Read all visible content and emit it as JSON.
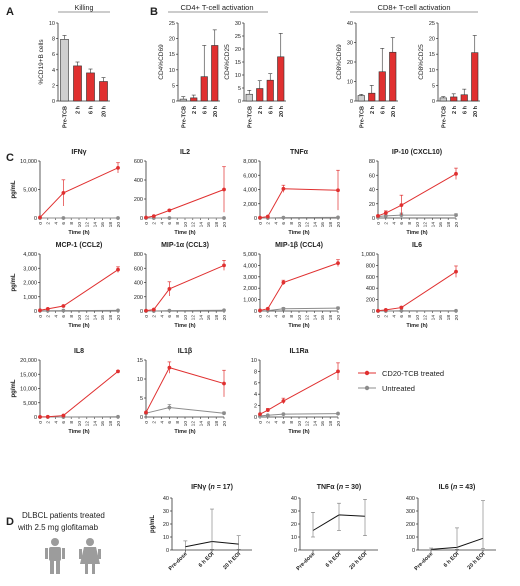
{
  "panel_letters": [
    "A",
    "B",
    "C",
    "D"
  ],
  "legend": {
    "treated_label": "CD20-TCB treated",
    "untreated_label": "Untreated",
    "treated_color": "#e03030",
    "untreated_color": "#8c8c8c"
  },
  "patients_note": [
    "DLBCL patients treated",
    "with 2.5 mg glofitamab"
  ],
  "chart_data": [
    {
      "id": "A1",
      "type": "bar",
      "header": "Killing",
      "ylabel": "%CD19+B cells",
      "ylim": [
        0,
        10
      ],
      "yticks": [
        0,
        2,
        4,
        6,
        8,
        10
      ],
      "categories": [
        "Pre-TCB",
        "2 h",
        "6 h",
        "20 h"
      ],
      "values": [
        7.9,
        4.5,
        3.6,
        2.5
      ],
      "errors": [
        0.5,
        0.5,
        0.5,
        0.5
      ],
      "colors": [
        "#cfcfcf",
        "#e03030",
        "#e03030",
        "#e03030"
      ]
    },
    {
      "id": "B1",
      "type": "bar",
      "group_header": "CD4+ T-cell activation",
      "ylabel": "CD4%CD69",
      "ylim": [
        0,
        25
      ],
      "yticks": [
        0,
        5,
        10,
        15,
        20,
        25
      ],
      "categories": [
        "Pre-TCB",
        "2 h",
        "6 h",
        "20 h"
      ],
      "values": [
        0.6,
        1.0,
        7.8,
        17.8
      ],
      "errors": [
        0.8,
        0.9,
        10.0,
        5.0
      ],
      "colors": [
        "#cfcfcf",
        "#e03030",
        "#e03030",
        "#e03030"
      ]
    },
    {
      "id": "B2",
      "type": "bar",
      "ylabel": "CD4%CD25",
      "ylim": [
        0,
        30
      ],
      "yticks": [
        0,
        5,
        10,
        15,
        20,
        25,
        30
      ],
      "categories": [
        "Pre-TCB",
        "2 h",
        "6 h",
        "20 h"
      ],
      "values": [
        2.6,
        4.8,
        8.0,
        17.0
      ],
      "errors": [
        1.5,
        3.0,
        2.5,
        9.0
      ],
      "colors": [
        "#cfcfcf",
        "#e03030",
        "#e03030",
        "#e03030"
      ]
    },
    {
      "id": "B3",
      "type": "bar",
      "group_header": "CD8+ T-cell activation",
      "ylabel": "CD8%CD69",
      "ylim": [
        0,
        40
      ],
      "yticks": [
        0,
        10,
        20,
        30,
        40
      ],
      "categories": [
        "Pre-TCB",
        "2 h",
        "6 h",
        "20 h"
      ],
      "values": [
        2.8,
        4.0,
        15.0,
        25.0
      ],
      "errors": [
        0.6,
        4.0,
        12.0,
        7.5
      ],
      "colors": [
        "#cfcfcf",
        "#e03030",
        "#e03030",
        "#e03030"
      ]
    },
    {
      "id": "B4",
      "type": "bar",
      "ylabel": "CD8%CD25",
      "ylim": [
        0,
        25
      ],
      "yticks": [
        0,
        5,
        10,
        15,
        20,
        25
      ],
      "categories": [
        "Pre-TCB",
        "2 h",
        "6 h",
        "20 h"
      ],
      "values": [
        1.0,
        1.3,
        2.0,
        15.5
      ],
      "errors": [
        0.4,
        1.0,
        1.8,
        5.5
      ],
      "colors": [
        "#cfcfcf",
        "#e03030",
        "#e03030",
        "#e03030"
      ]
    },
    {
      "id": "C1",
      "type": "line",
      "title": "IFNγ",
      "ylabel": "pg/mL",
      "xlabel": "Time (h)",
      "ylim": [
        0,
        10000
      ],
      "yticks": [
        0,
        5000,
        10000
      ],
      "ytick_labels": [
        "0",
        "5,000",
        "10,000"
      ],
      "series": [
        {
          "x": [
            0,
            6,
            20
          ],
          "y": [
            100,
            4400,
            8800
          ],
          "err": [
            0,
            2300,
            900
          ]
        },
        {
          "x": [
            0,
            6,
            20
          ],
          "y": [
            0,
            0,
            0
          ],
          "err": [
            0,
            0,
            0
          ]
        }
      ]
    },
    {
      "id": "C2",
      "type": "line",
      "title": "IL2",
      "ylabel": "",
      "xlabel": "Time (h)",
      "ylim": [
        0,
        600
      ],
      "yticks": [
        0,
        200,
        400,
        600
      ],
      "ytick_labels": [
        "0",
        "200",
        "400",
        "600"
      ],
      "series": [
        {
          "x": [
            0,
            2,
            6,
            20
          ],
          "y": [
            5,
            20,
            80,
            300
          ],
          "err": [
            0,
            5,
            10,
            240
          ]
        },
        {
          "x": [
            0,
            2,
            6,
            20
          ],
          "y": [
            0,
            0,
            0,
            0
          ],
          "err": [
            0,
            0,
            0,
            0
          ]
        }
      ]
    },
    {
      "id": "C3",
      "type": "line",
      "title": "TNFα",
      "ylabel": "",
      "xlabel": "Time (h)",
      "ylim": [
        0,
        8000
      ],
      "yticks": [
        0,
        2000,
        4000,
        6000,
        8000
      ],
      "ytick_labels": [
        "0",
        "2,000",
        "4,000",
        "6,000",
        "8,000"
      ],
      "series": [
        {
          "x": [
            0,
            2,
            6,
            20
          ],
          "y": [
            50,
            200,
            4100,
            3900
          ],
          "err": [
            0,
            0,
            500,
            2800
          ]
        },
        {
          "x": [
            0,
            2,
            6,
            20
          ],
          "y": [
            0,
            0,
            50,
            80
          ],
          "err": [
            0,
            0,
            0,
            0
          ]
        }
      ]
    },
    {
      "id": "C4",
      "type": "line",
      "title": "IP-10 (CXCL10)",
      "ylabel": "",
      "xlabel": "Time (h)",
      "ylim": [
        0,
        80
      ],
      "yticks": [
        0,
        20,
        40,
        60,
        80
      ],
      "ytick_labels": [
        "0",
        "20",
        "40",
        "60",
        "80"
      ],
      "series": [
        {
          "x": [
            0,
            2,
            6,
            20
          ],
          "y": [
            3,
            7,
            18,
            62
          ],
          "err": [
            1,
            3,
            14,
            8
          ]
        },
        {
          "x": [
            0,
            2,
            6,
            20
          ],
          "y": [
            2,
            3,
            4,
            4
          ],
          "err": [
            0,
            1,
            3,
            2
          ]
        }
      ]
    },
    {
      "id": "C5",
      "type": "line",
      "title": "MCP-1 (CCL2)",
      "ylabel": "pg/mL",
      "xlabel": "Time (h)",
      "ylim": [
        0,
        4000
      ],
      "yticks": [
        0,
        1000,
        2000,
        3000,
        4000
      ],
      "ytick_labels": [
        "0",
        "1,000",
        "2,000",
        "3,000",
        "4,000"
      ],
      "series": [
        {
          "x": [
            0,
            2,
            6,
            20
          ],
          "y": [
            50,
            150,
            350,
            2900
          ],
          "err": [
            0,
            20,
            40,
            200
          ]
        },
        {
          "x": [
            0,
            2,
            6,
            20
          ],
          "y": [
            20,
            20,
            30,
            40
          ],
          "err": [
            0,
            0,
            0,
            0
          ]
        }
      ]
    },
    {
      "id": "C6",
      "type": "line",
      "title": "MIP-1α (CCL3)",
      "ylabel": "",
      "xlabel": "Time (h)",
      "ylim": [
        0,
        800
      ],
      "yticks": [
        0,
        200,
        400,
        600,
        800
      ],
      "ytick_labels": [
        "0",
        "200",
        "400",
        "600",
        "800"
      ],
      "series": [
        {
          "x": [
            0,
            2,
            6,
            20
          ],
          "y": [
            5,
            20,
            310,
            640
          ],
          "err": [
            0,
            5,
            100,
            70
          ]
        },
        {
          "x": [
            0,
            2,
            6,
            20
          ],
          "y": [
            0,
            0,
            5,
            10
          ],
          "err": [
            0,
            0,
            0,
            0
          ]
        }
      ]
    },
    {
      "id": "C7",
      "type": "line",
      "title": "MIP-1β (CCL4)",
      "ylabel": "",
      "xlabel": "Time (h)",
      "ylim": [
        0,
        5000
      ],
      "yticks": [
        0,
        1000,
        2000,
        3000,
        4000,
        5000
      ],
      "ytick_labels": [
        "0",
        "1,000",
        "2,000",
        "3,000",
        "4,000",
        "5,000"
      ],
      "series": [
        {
          "x": [
            0,
            2,
            6,
            20
          ],
          "y": [
            50,
            200,
            2500,
            4200
          ],
          "err": [
            0,
            50,
            200,
            300
          ]
        },
        {
          "x": [
            0,
            2,
            6,
            20
          ],
          "y": [
            20,
            30,
            200,
            250
          ],
          "err": [
            0,
            0,
            100,
            100
          ]
        }
      ]
    },
    {
      "id": "C8",
      "type": "line",
      "title": "IL6",
      "ylabel": "",
      "xlabel": "Time (h)",
      "ylim": [
        0,
        1000
      ],
      "yticks": [
        0,
        200,
        400,
        600,
        800,
        1000
      ],
      "ytick_labels": [
        "0",
        "200",
        "400",
        "600",
        "800",
        "1,000"
      ],
      "series": [
        {
          "x": [
            0,
            2,
            6,
            20
          ],
          "y": [
            5,
            20,
            60,
            690
          ],
          "err": [
            0,
            5,
            20,
            100
          ]
        },
        {
          "x": [
            0,
            2,
            6,
            20
          ],
          "y": [
            0,
            0,
            5,
            5
          ],
          "err": [
            0,
            0,
            0,
            0
          ]
        }
      ]
    },
    {
      "id": "C9",
      "type": "line",
      "title": "IL8",
      "ylabel": "pg/mL",
      "xlabel": "Time (h)",
      "ylim": [
        0,
        20000
      ],
      "yticks": [
        0,
        5000,
        10000,
        15000,
        20000
      ],
      "ytick_labels": [
        "0",
        "5,000",
        "10,000",
        "15,000",
        "20,000"
      ],
      "series": [
        {
          "x": [
            0,
            2,
            6,
            20
          ],
          "y": [
            50,
            100,
            500,
            16000
          ],
          "err": [
            0,
            50,
            100,
            300
          ]
        },
        {
          "x": [
            0,
            2,
            6,
            20
          ],
          "y": [
            0,
            0,
            0,
            100
          ],
          "err": [
            0,
            0,
            0,
            0
          ]
        }
      ]
    },
    {
      "id": "C10",
      "type": "line",
      "title": "IL1β",
      "ylabel": "",
      "xlabel": "Time (h)",
      "ylim": [
        0,
        15
      ],
      "yticks": [
        0,
        5,
        10,
        15
      ],
      "ytick_labels": [
        "0",
        "5",
        "10",
        "15"
      ],
      "series": [
        {
          "x": [
            0,
            6,
            20
          ],
          "y": [
            1.2,
            13,
            8.8
          ],
          "err": [
            0,
            1.5,
            3.5
          ]
        },
        {
          "x": [
            0,
            6,
            20
          ],
          "y": [
            1.0,
            2.5,
            1.0
          ],
          "err": [
            0,
            0.8,
            0.3
          ]
        }
      ]
    },
    {
      "id": "C11",
      "type": "line",
      "title": "IL1Ra",
      "ylabel": "",
      "xlabel": "Time (h)",
      "ylim": [
        0,
        10
      ],
      "yticks": [
        0,
        2,
        4,
        6,
        8,
        10
      ],
      "ytick_labels": [
        "0",
        "2",
        "4",
        "6",
        "8",
        "10"
      ],
      "series": [
        {
          "x": [
            0,
            2,
            6,
            20
          ],
          "y": [
            0.5,
            1.2,
            2.8,
            8.0
          ],
          "err": [
            0,
            0.3,
            0.5,
            1.5
          ]
        },
        {
          "x": [
            0,
            2,
            6,
            20
          ],
          "y": [
            0.2,
            0.3,
            0.5,
            0.6
          ],
          "err": [
            0,
            0,
            0,
            0
          ]
        }
      ]
    },
    {
      "id": "D1",
      "type": "line",
      "title_main": "IFNγ",
      "title_n": "17",
      "ylabel": "pg/mL",
      "ylim": [
        0,
        40
      ],
      "yticks": [
        0,
        10,
        20,
        30,
        40
      ],
      "ytick_labels": [
        "0",
        "10",
        "20",
        "30",
        "40"
      ],
      "categories": [
        "Pre-dose",
        "6 h EOI",
        "20 h EOI"
      ],
      "values": [
        2.5,
        6.5,
        4.5
      ],
      "err_low": [
        2.5,
        6.0,
        4.0
      ],
      "err_high": [
        4.5,
        25,
        6.5
      ]
    },
    {
      "id": "D2",
      "type": "line",
      "title_main": "TNFα",
      "title_n": "30",
      "ylabel": "",
      "ylim": [
        0,
        40
      ],
      "yticks": [
        0,
        10,
        20,
        30,
        40
      ],
      "ytick_labels": [
        "0",
        "10",
        "20",
        "30",
        "40"
      ],
      "categories": [
        "Pre-dose",
        "6 h EOI",
        "20 h EOI"
      ],
      "values": [
        15,
        27,
        26
      ],
      "err_low": [
        5,
        12,
        15
      ],
      "err_high": [
        14,
        9,
        13
      ]
    },
    {
      "id": "D3",
      "type": "line",
      "title_main": "IL6",
      "title_n": "43",
      "ylabel": "",
      "ylim": [
        0,
        400
      ],
      "yticks": [
        0,
        100,
        200,
        300,
        400
      ],
      "ytick_labels": [
        "0",
        "100",
        "200",
        "300",
        "400"
      ],
      "categories": [
        "Pre-dose",
        "6 h EOI",
        "20 h EOI"
      ],
      "values": [
        5,
        20,
        90
      ],
      "err_low": [
        5,
        15,
        80
      ],
      "err_high": [
        10,
        150,
        290
      ]
    }
  ]
}
